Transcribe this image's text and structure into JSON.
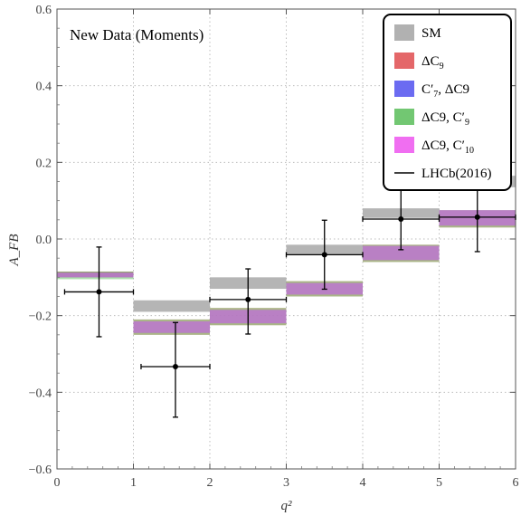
{
  "chart_data": {
    "type": "bar",
    "annotation": "New Data (Moments)",
    "xlabel": "q²",
    "ylabel": "A_FB",
    "xlim": [
      0,
      6
    ],
    "ylim": [
      -0.6,
      0.6
    ],
    "xticks": [
      "0",
      "1",
      "2",
      "3",
      "4",
      "5",
      "6"
    ],
    "yticks": [
      "−0.6",
      "−0.4",
      "−0.2",
      "0.0",
      "0.2",
      "0.4",
      "0.6"
    ],
    "grid": true,
    "legend_position": "top-right",
    "bins": [
      [
        0,
        1
      ],
      [
        1,
        2
      ],
      [
        2,
        3
      ],
      [
        3,
        4
      ],
      [
        4,
        5
      ],
      [
        5,
        6
      ]
    ],
    "series": [
      {
        "name": "SM",
        "color": "#a8a8a8",
        "type": "band",
        "low": [
          -0.1,
          -0.19,
          -0.13,
          -0.04,
          0.055,
          0.135
        ],
        "high": [
          -0.085,
          -0.16,
          -0.1,
          -0.015,
          0.08,
          0.165
        ]
      },
      {
        "name": "ΔC9",
        "color": "#e15759",
        "type": "band",
        "low": [
          -0.1,
          -0.25,
          -0.225,
          -0.15,
          -0.06,
          0.03
        ],
        "high": [
          -0.085,
          -0.21,
          -0.18,
          -0.11,
          -0.015,
          0.075
        ]
      },
      {
        "name": "C7′, ΔC9",
        "color": "#5b5bef",
        "type": "band",
        "low": [
          -0.1,
          -0.245,
          -0.22,
          -0.145,
          -0.055,
          0.035
        ],
        "high": [
          -0.088,
          -0.215,
          -0.185,
          -0.115,
          -0.018,
          0.075
        ]
      },
      {
        "name": "ΔC9, C9′",
        "color": "#63c163",
        "type": "band",
        "low": [
          -0.105,
          -0.25,
          -0.225,
          -0.15,
          -0.06,
          0.03
        ],
        "high": [
          -0.085,
          -0.21,
          -0.18,
          -0.11,
          -0.015,
          0.075
        ]
      },
      {
        "name": "ΔC9, C10′",
        "color": "#ee5ef0",
        "type": "band",
        "low": [
          -0.1,
          -0.245,
          -0.22,
          -0.145,
          -0.055,
          0.035
        ],
        "high": [
          -0.088,
          -0.215,
          -0.185,
          -0.115,
          -0.018,
          0.075
        ]
      },
      {
        "name": "LHCb(2016)",
        "color": "#000000",
        "type": "errorbar",
        "x": [
          0.55,
          1.55,
          2.5,
          3.5,
          4.5,
          5.5
        ],
        "y": [
          -0.138,
          -0.333,
          -0.158,
          -0.041,
          0.052,
          0.057
        ],
        "xerr_low": [
          0.45,
          0.45,
          0.5,
          0.5,
          0.5,
          0.5
        ],
        "xerr_high": [
          0.45,
          0.45,
          0.5,
          0.5,
          0.5,
          0.5
        ],
        "yerr_low": [
          0.117,
          0.132,
          0.09,
          0.09,
          0.08,
          0.09
        ],
        "yerr_high": [
          0.117,
          0.115,
          0.08,
          0.09,
          0.08,
          0.09
        ]
      }
    ],
    "legend": [
      {
        "label_main": "SM",
        "label_sub": "",
        "label_rest": "",
        "color": "#a8a8a8",
        "kind": "box"
      },
      {
        "label_main": "ΔC",
        "label_sub": "9",
        "label_rest": "",
        "color": "#e15759",
        "kind": "box"
      },
      {
        "label_main": "C′",
        "label_sub": "7",
        "label_rest": ", ΔC9",
        "color": "#5b5bef",
        "kind": "box"
      },
      {
        "label_main": "ΔC9, C′",
        "label_sub": "9",
        "label_rest": "",
        "color": "#63c163",
        "kind": "box"
      },
      {
        "label_main": "ΔC9, C′",
        "label_sub": "10",
        "label_rest": "",
        "color": "#ee5ef0",
        "kind": "box"
      },
      {
        "label_main": "LHCb(2016)",
        "label_sub": "",
        "label_rest": "",
        "color": "#000000",
        "kind": "line"
      }
    ]
  }
}
